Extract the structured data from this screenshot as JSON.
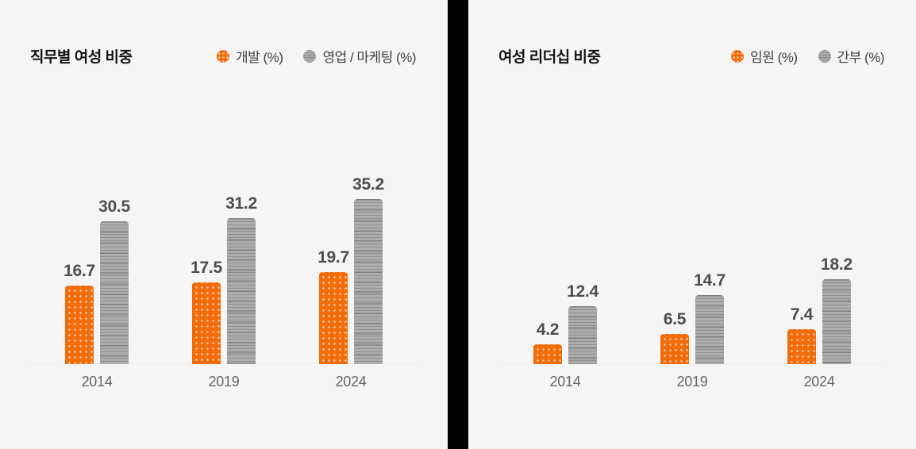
{
  "colors": {
    "background": "#f5f5f5",
    "divider": "#000000",
    "bar_orange": "#f26c09",
    "bar_gray": "#adadad",
    "value_label": "#4d4d4d",
    "category_label": "#666666",
    "title_text": "#111111",
    "legend_text": "#404040",
    "baseline": "#ebebeb"
  },
  "chart_data": [
    {
      "type": "bar",
      "title": "직무별 여성 비중",
      "categories": [
        "2014",
        "2019",
        "2024"
      ],
      "series": [
        {
          "name": "개발 (%)",
          "values": [
            16.7,
            17.5,
            19.7
          ],
          "color": "#f26c09",
          "pattern": "dots"
        },
        {
          "name": "영업 / 마케팅 (%)",
          "values": [
            30.5,
            31.2,
            35.2
          ],
          "color": "#adadad",
          "pattern": "hlines"
        }
      ],
      "xlabel": "",
      "ylabel": "%",
      "grid": false,
      "legend_position": "top-right",
      "value_labels": true
    },
    {
      "type": "bar",
      "title": "여성 리더십 비중",
      "categories": [
        "2014",
        "2019",
        "2024"
      ],
      "series": [
        {
          "name": "임원 (%)",
          "values": [
            4.2,
            6.5,
            7.4
          ],
          "color": "#f26c09",
          "pattern": "dots"
        },
        {
          "name": "간부 (%)",
          "values": [
            12.4,
            14.7,
            18.2
          ],
          "color": "#adadad",
          "pattern": "hlines"
        }
      ],
      "xlabel": "",
      "ylabel": "%",
      "grid": false,
      "legend_position": "top-right",
      "value_labels": true
    }
  ]
}
